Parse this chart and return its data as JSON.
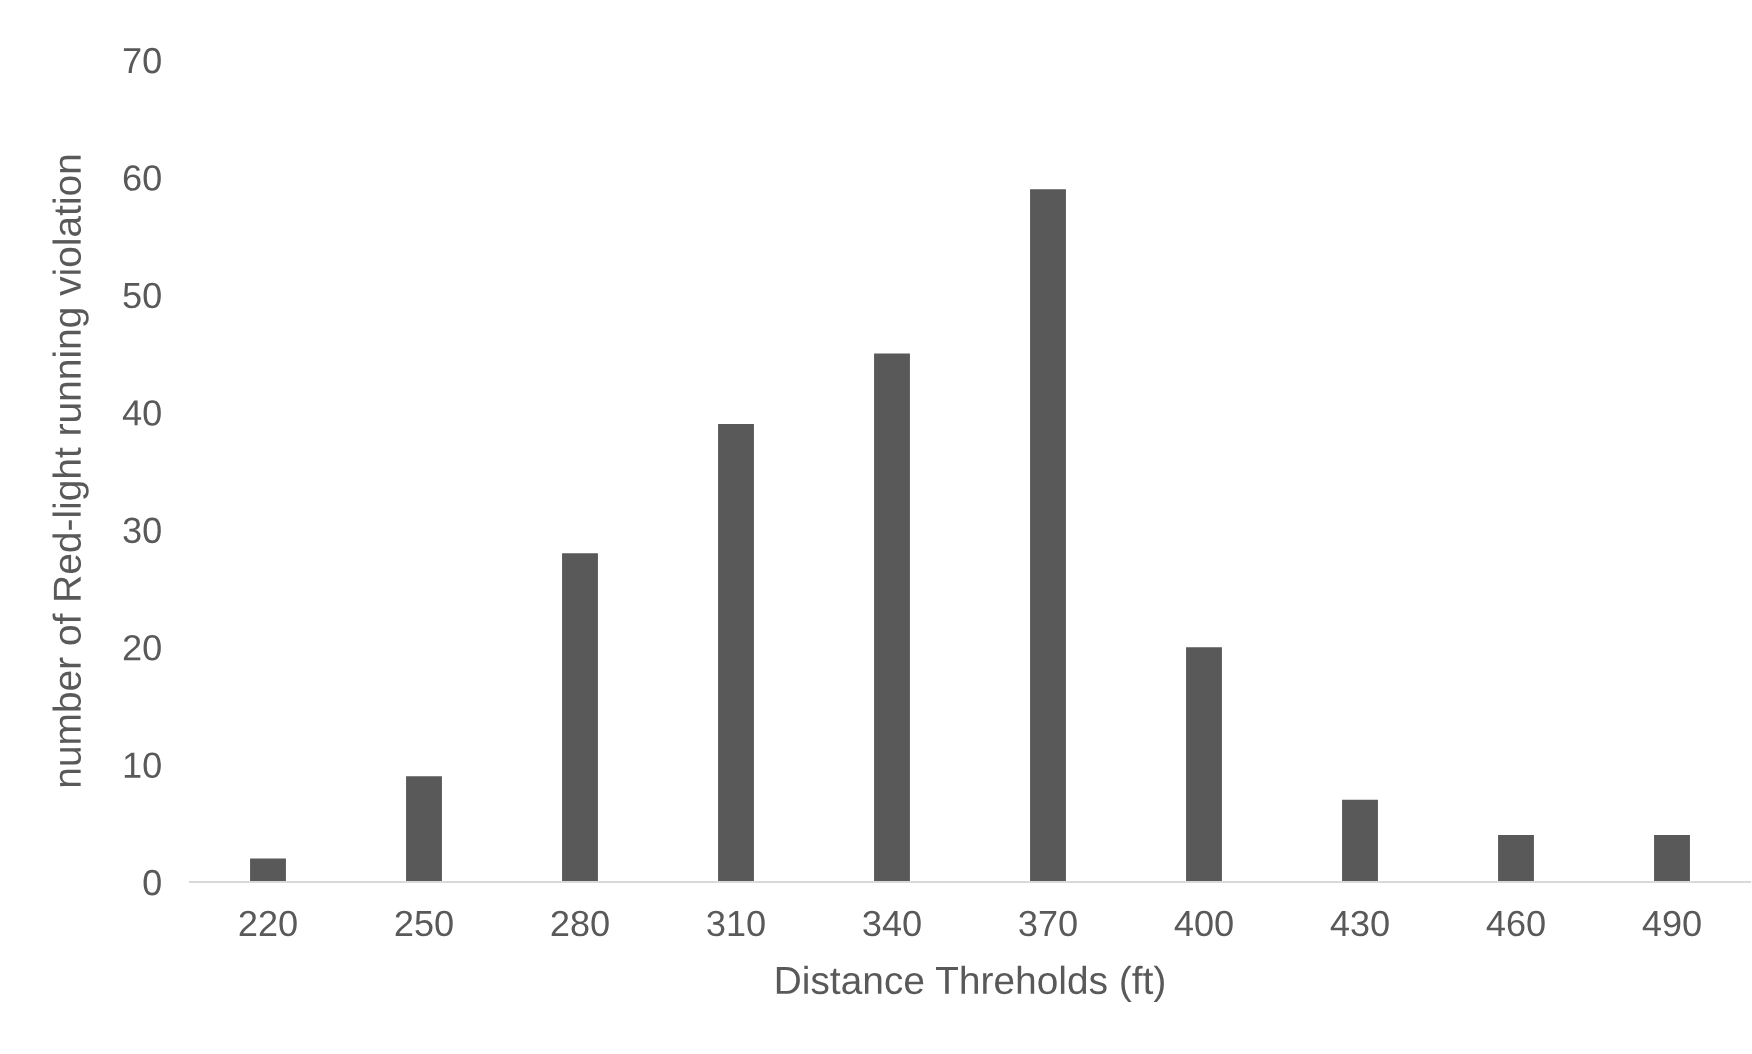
{
  "chart_data": {
    "type": "bar",
    "xlabel": "Distance Threholds (ft)",
    "ylabel": "number of Red-light running violation",
    "categories": [
      "220",
      "250",
      "280",
      "310",
      "340",
      "370",
      "400",
      "430",
      "460",
      "490"
    ],
    "values": [
      2,
      9,
      28,
      39,
      45,
      59,
      20,
      7,
      4,
      4
    ],
    "color": "#595959",
    "ylim": [
      0,
      70
    ],
    "yticks": [
      0,
      10,
      20,
      30,
      40,
      50,
      60,
      70
    ],
    "grid": false,
    "legend": false
  }
}
